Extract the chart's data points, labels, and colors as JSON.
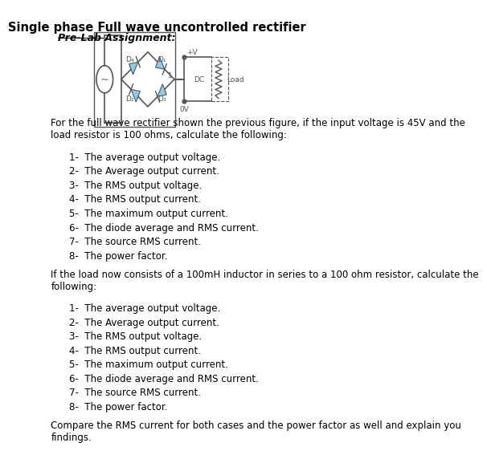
{
  "title": "Single phase Full wave uncontrolled rectifier",
  "subtitle": "Pre-Lab Assignment:",
  "paragraph1": "For the full wave rectifier shown the previous figure, if the input voltage is 45V and the\nload resistor is 100 ohms, calculate the following:",
  "list1": [
    "1-  The average output voltage.",
    "2-  The Average output current.",
    "3-  The RMS output voltage.",
    "4-  The RMS output current.",
    "5-  The maximum output current.",
    "6-  The diode average and RMS current.",
    "7-  The source RMS current.",
    "8-  The power factor."
  ],
  "paragraph2": "If the load now consists of a 100mH inductor in series to a 100 ohm resistor, calculate the\nfollowing:",
  "list2": [
    "1-  The average output voltage.",
    "2-  The Average output current.",
    "3-  The RMS output voltage.",
    "4-  The RMS output current.",
    "5-  The maximum output current.",
    "6-  The diode average and RMS current.",
    "7-  The source RMS current.",
    "8-  The power factor."
  ],
  "paragraph3": "Compare the RMS current for both cases and the power factor as well and explain you\nfindings.",
  "bg_color": "#ffffff",
  "text_color": "#000000",
  "title_fontsize": 10.5,
  "body_fontsize": 8.5,
  "subtitle_fontsize": 9,
  "list_fontsize": 8.5,
  "diagram_color": "#87CEEB",
  "diagram_line_color": "#555555"
}
